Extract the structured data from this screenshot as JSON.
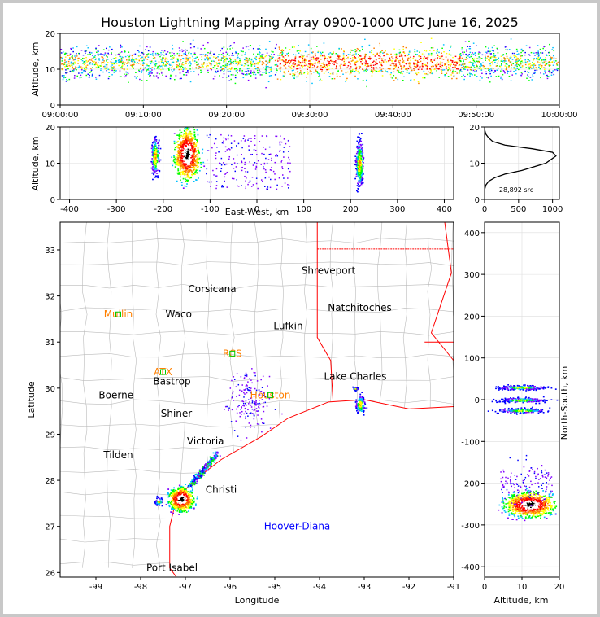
{
  "title": "Houston Lightning Mapping Array 0900-1000 UTC June 16, 2025",
  "colors": {
    "frame_bg": "#c8c8c8",
    "axes": "#000000",
    "grid": "#dddddd",
    "county_lines": "#bbbbbb",
    "state_line": "#ff0000",
    "coast_line": "#ff0000",
    "network_label": "#0000ff",
    "station_label": "#ff8000",
    "density_scale": [
      "#0000ff",
      "#8000ff",
      "#00c0ff",
      "#00ff00",
      "#ffff00",
      "#ff8000",
      "#ff0000",
      "#ffffff",
      "#000000"
    ]
  },
  "chart_data": [
    {
      "id": "time_height",
      "type": "scatter",
      "ylabel": "Altitude, km",
      "xlabel": "",
      "xticks": [
        "09:00:00",
        "09:10:00",
        "09:20:00",
        "09:30:00",
        "09:40:00",
        "09:50:00",
        "10:00:00"
      ],
      "xlim_minutes": [
        0,
        60
      ],
      "yticks": [
        0,
        10,
        20
      ],
      "ylim": [
        0,
        20
      ],
      "band": {
        "alt_center_km": 12,
        "alt_spread_km": 4,
        "peak_minutes": [
          32,
          40
        ]
      },
      "grid": true
    },
    {
      "id": "ew_height",
      "type": "scatter",
      "xlabel": "East-West, km",
      "ylabel": "Altitude, km",
      "xticks": [
        -400,
        -300,
        -200,
        -100,
        0,
        100,
        200,
        300,
        400
      ],
      "xlim": [
        -420,
        420
      ],
      "yticks": [
        0,
        10,
        20
      ],
      "ylim": [
        0,
        20
      ],
      "clusters": [
        {
          "x_km": -150,
          "alt_km": 13,
          "intensity": "high"
        },
        {
          "x_km": -218,
          "alt_km": 12,
          "intensity": "medium"
        },
        {
          "x_km": 218,
          "alt_km": 10,
          "intensity": "medium"
        },
        {
          "x_km": -20,
          "alt_km": 13,
          "intensity": "low"
        }
      ],
      "grid": true
    },
    {
      "id": "altitude_histogram",
      "type": "line",
      "xticks": [
        0,
        500,
        1000
      ],
      "xlim": [
        0,
        1100
      ],
      "yticks": [
        0,
        10,
        20
      ],
      "ylim": [
        0,
        20
      ],
      "x": [
        0,
        5,
        20,
        60,
        150,
        300,
        550,
        900,
        1050,
        1000,
        700,
        300,
        120,
        60,
        20,
        5,
        0
      ],
      "y": [
        2,
        3,
        4,
        5,
        6,
        7,
        8,
        10,
        12,
        13,
        14,
        15,
        16,
        17,
        18,
        19,
        20
      ],
      "annotation": "28,892 src"
    },
    {
      "id": "plan_view",
      "type": "scatter",
      "xlabel": "Longitude",
      "ylabel": "Latitude",
      "xticks": [
        -99,
        -98,
        -97,
        -96,
        -95,
        -94,
        -93,
        -92,
        -91
      ],
      "xlim": [
        -99.8,
        -91
      ],
      "yticks": [
        26,
        27,
        28,
        29,
        30,
        31,
        32,
        33
      ],
      "ylim": [
        25.9,
        33.6
      ],
      "cities": [
        {
          "name": "Shreveport",
          "lon": -93.8,
          "lat": 32.55
        },
        {
          "name": "Corsicana",
          "lon": -96.4,
          "lat": 32.15
        },
        {
          "name": "Natchitoches",
          "lon": -93.1,
          "lat": 31.75
        },
        {
          "name": "Waco",
          "lon": -97.15,
          "lat": 31.6
        },
        {
          "name": "Lufkin",
          "lon": -94.7,
          "lat": 31.35
        },
        {
          "name": "Bastrop",
          "lon": -97.3,
          "lat": 30.15
        },
        {
          "name": "Lake Charles",
          "lon": -93.2,
          "lat": 30.25
        },
        {
          "name": "Boerne",
          "lon": -98.55,
          "lat": 29.85
        },
        {
          "name": "Shiner",
          "lon": -97.2,
          "lat": 29.45
        },
        {
          "name": "Victoria",
          "lon": -96.55,
          "lat": 28.85
        },
        {
          "name": "Tilden",
          "lon": -98.5,
          "lat": 28.55
        },
        {
          "name": "Christi",
          "lon": -96.2,
          "lat": 27.8
        },
        {
          "name": "Port Isabel",
          "lon": -97.3,
          "lat": 26.1
        }
      ],
      "stations": [
        {
          "name": "Mullin",
          "lon": -98.5,
          "lat": 31.6
        },
        {
          "name": "ATX",
          "lon": -97.5,
          "lat": 30.35
        },
        {
          "name": "RCS",
          "lon": -95.95,
          "lat": 30.75
        },
        {
          "name": "Houston",
          "lon": -95.1,
          "lat": 29.85
        }
      ],
      "network_name": "Hoover-Diana",
      "network_position": {
        "lon": -94.5,
        "lat": 27.0
      },
      "clusters": [
        {
          "lon": -97.1,
          "lat": 27.6,
          "intensity": "high"
        },
        {
          "lon": -96.5,
          "lat": 28.25,
          "intensity": "medium"
        },
        {
          "lon": -95.4,
          "lat": 29.75,
          "intensity": "low"
        },
        {
          "lon": -93.1,
          "lat": 29.6,
          "intensity": "medium"
        }
      ]
    },
    {
      "id": "ns_height",
      "type": "scatter",
      "xlabel": "Altitude, km",
      "ylabel": "North-South, km",
      "xticks": [
        0,
        10,
        20
      ],
      "xlim": [
        0,
        20
      ],
      "yticks": [
        -400,
        -300,
        -200,
        -100,
        0,
        100,
        200,
        300,
        400
      ],
      "ylim": [
        -425,
        425
      ],
      "clusters": [
        {
          "alt_km": 12,
          "y_km": -250,
          "intensity": "high"
        },
        {
          "alt_km": 10,
          "y_km": 30,
          "intensity": "medium"
        },
        {
          "alt_km": 10,
          "y_km": 0,
          "intensity": "medium"
        },
        {
          "alt_km": 10,
          "y_km": -25,
          "intensity": "medium"
        }
      ]
    }
  ]
}
